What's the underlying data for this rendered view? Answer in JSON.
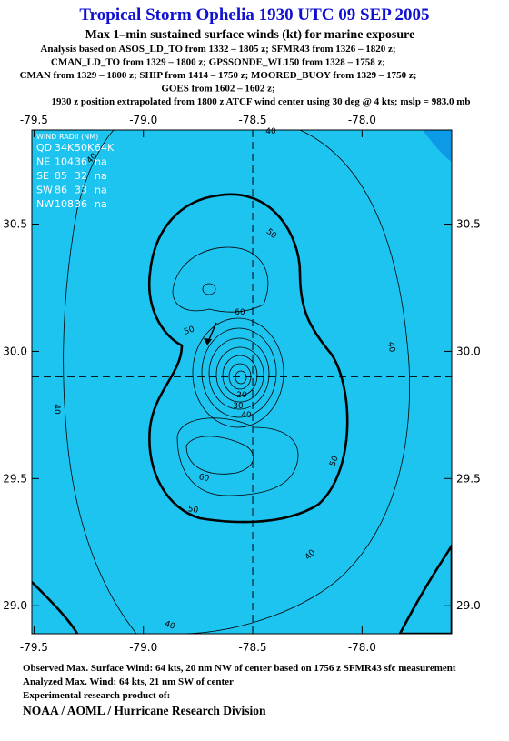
{
  "chart_data": {
    "type": "contour",
    "title": "Tropical Storm Ophelia 1930 UTC 09 SEP 2005",
    "subtitle": "Max 1–min sustained surface winds (kt) for marine exposure",
    "analysis_lines": [
      "Analysis based on  ASOS_LD_TO from 1332 – 1805 z;  SFMR43 from 1326 – 1820 z;",
      "CMAN_LD_TO from 1329 – 1800 z;  GPSSONDE_WL150 from 1328 – 1758 z;",
      "CMAN from 1329 – 1800 z;  SHIP from 1414 – 1750 z;  MOORED_BUOY from 1329 – 1750 z;",
      "GOES from 1602 – 1602 z;",
      "1930 z position extrapolated from 1800 z ATCF wind center using 30 deg @ 4 kts; mslp = 983.0 mb"
    ],
    "xlim": [
      -79.51,
      -77.59
    ],
    "ylim": [
      28.89,
      30.87
    ],
    "xticks": [
      -79.5,
      {
        "value": -79,
        "label": "-79.0"
      },
      -78.5,
      {
        "value": -78,
        "label": "-78.0"
      }
    ],
    "yticks": [
      {
        "value": 29,
        "label": "29.0"
      },
      29.5,
      {
        "value": 30,
        "label": "30.0"
      },
      30.5
    ],
    "center": {
      "x": -78.5,
      "y": 29.9
    },
    "wind_radii": {
      "title": "WIND RADII (NM)",
      "rows": [
        [
          "QD",
          "34K",
          "50K",
          "64K"
        ],
        [
          "NE",
          "104",
          "36",
          "na"
        ],
        [
          "SE",
          "85",
          "32",
          "na"
        ],
        [
          "SW",
          "86",
          "33",
          "na"
        ],
        [
          "NW",
          "108",
          "36",
          "na"
        ]
      ]
    },
    "contour_labels": [
      40,
      40,
      40,
      40,
      40,
      40,
      50,
      50,
      50,
      50,
      60,
      60,
      40,
      30,
      20
    ],
    "footer": [
      "Observed Max. Surface Wind: 64 kts, 20 nm NW of center based on 1756 z SFMR43 sfc measurement",
      "Analyzed Max. Wind: 64 kts, 21 nm SW of center",
      "Experimental research product of:"
    ],
    "organization": "NOAA / AOML / Hurricane Research Division"
  }
}
